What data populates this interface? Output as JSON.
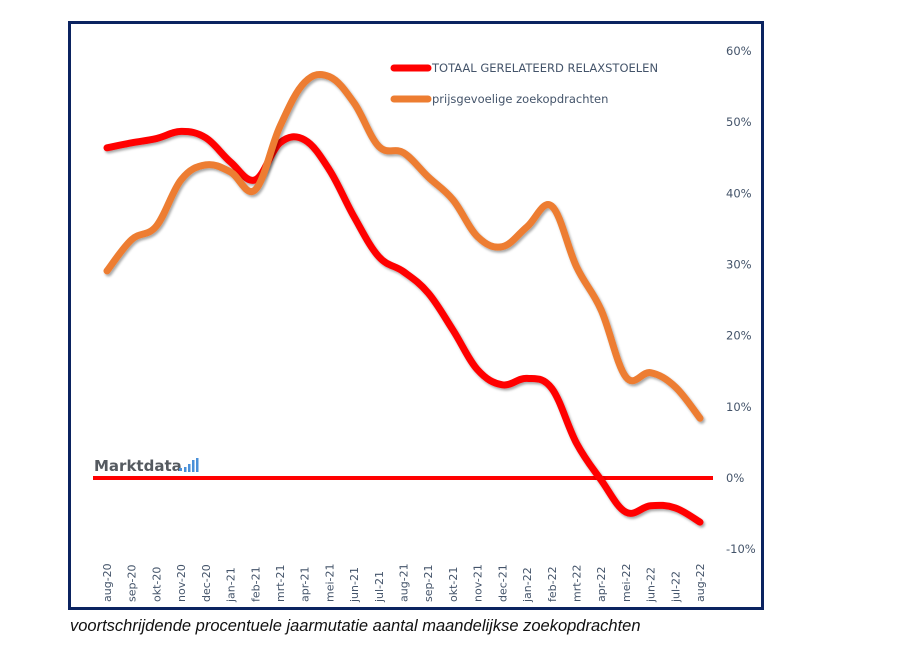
{
  "caption": "voortschrijdende procentuele jaarmutatie aantal maandelijkse zoekopdrachten",
  "brand": {
    "text": "Marktdata",
    "suffix_icon": "bar-chart-icon",
    "colors": {
      "text": "#555a60",
      "bars": "#4a90d9"
    }
  },
  "chart_data": {
    "type": "line",
    "title": "",
    "xlabel": "",
    "ylabel": "",
    "ylim": [
      -10,
      60
    ],
    "yticks": [
      60,
      50,
      40,
      30,
      20,
      10,
      0,
      -10
    ],
    "ytick_labels": [
      "60%",
      "50%",
      "40%",
      "30%",
      "20%",
      "10%",
      "0%",
      "-10%"
    ],
    "y_axis_position": "right",
    "grid": false,
    "legend_position": "top-right",
    "categories": [
      "aug-20",
      "sep-20",
      "okt-20",
      "nov-20",
      "dec-20",
      "jan-21",
      "feb-21",
      "mrt-21",
      "apr-21",
      "mei-21",
      "jun-21",
      "jul-21",
      "aug-21",
      "sep-21",
      "okt-21",
      "nov-21",
      "dec-21",
      "jan-22",
      "feb-22",
      "mrt-22",
      "apr-22",
      "mei-22",
      "jun-22",
      "jul-22",
      "aug-22"
    ],
    "series": [
      {
        "name": "TOTAAL GERELATEERD RELAXSTOELEN",
        "color": "#ff0000",
        "values": [
          46.4,
          47.1,
          47.7,
          48.7,
          47.8,
          44.4,
          41.9,
          47.1,
          47.5,
          43.3,
          36.7,
          31.1,
          29.0,
          26.0,
          20.8,
          15.2,
          13.1,
          14.0,
          12.6,
          4.9,
          -0.3,
          -4.8,
          -3.9,
          -4.2,
          -6.2
        ]
      },
      {
        "name": "prijsgevoelige zoekopdrachten",
        "color": "#ed7d31",
        "values": [
          29.1,
          33.5,
          35.4,
          41.9,
          44.0,
          43.0,
          40.5,
          49.4,
          55.6,
          56.4,
          52.7,
          46.6,
          45.7,
          42.3,
          39.1,
          33.9,
          32.5,
          35.3,
          38.2,
          29.7,
          23.6,
          14.2,
          14.8,
          12.8,
          8.4
        ]
      }
    ],
    "reference_line": {
      "value": 0,
      "color": "#ff0000"
    }
  }
}
